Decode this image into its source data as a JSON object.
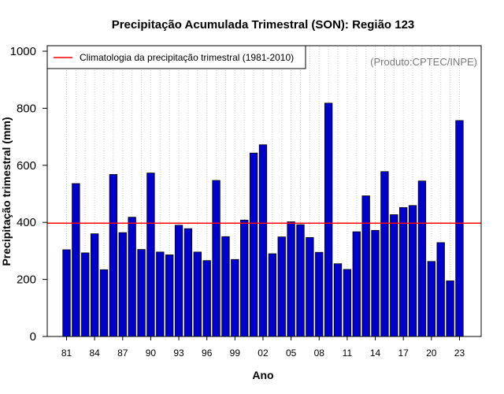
{
  "chart_data": {
    "type": "bar",
    "title": "Precipitação Acumulada Trimestral (SON): Região 123",
    "xlabel": "Ano",
    "ylabel": "Precipitação trimestral (mm)",
    "ylim": [
      0,
      1000
    ],
    "yticks": [
      0,
      200,
      400,
      600,
      800,
      1000
    ],
    "years": [
      1981,
      1982,
      1983,
      1984,
      1985,
      1986,
      1987,
      1988,
      1989,
      1990,
      1991,
      1992,
      1993,
      1994,
      1995,
      1996,
      1997,
      1998,
      1999,
      2000,
      2001,
      2002,
      2003,
      2004,
      2005,
      2006,
      2007,
      2008,
      2009,
      2010,
      2011,
      2012,
      2013,
      2014,
      2015,
      2016,
      2017,
      2018,
      2019,
      2020,
      2021,
      2022,
      2023
    ],
    "categories": [
      "81",
      "82",
      "83",
      "84",
      "85",
      "86",
      "87",
      "88",
      "89",
      "90",
      "91",
      "92",
      "93",
      "94",
      "95",
      "96",
      "97",
      "98",
      "99",
      "00",
      "01",
      "02",
      "03",
      "04",
      "05",
      "06",
      "07",
      "08",
      "09",
      "10",
      "11",
      "12",
      "13",
      "14",
      "15",
      "16",
      "17",
      "18",
      "19",
      "20",
      "21",
      "22",
      "23"
    ],
    "tick_labels": [
      "81",
      "84",
      "87",
      "90",
      "93",
      "96",
      "99",
      "02",
      "05",
      "08",
      "11",
      "14",
      "17",
      "20",
      "23"
    ],
    "tick_label_indices": [
      0,
      3,
      6,
      9,
      12,
      15,
      18,
      21,
      24,
      27,
      30,
      33,
      36,
      39,
      42
    ],
    "values": [
      304,
      536,
      293,
      360,
      234,
      568,
      364,
      418,
      305,
      573,
      296,
      286,
      390,
      378,
      296,
      266,
      547,
      350,
      270,
      408,
      643,
      672,
      290,
      349,
      402,
      392,
      347,
      295,
      818,
      255,
      235,
      367,
      493,
      372,
      578,
      427,
      452,
      459,
      545,
      263,
      329,
      195,
      757
    ],
    "climatology": 397,
    "legend": {
      "label": "Climatologia da precipitação trimestral (1981-2010)",
      "position": "top-left"
    },
    "annotation": "(Produto:CPTEC/INPE)",
    "grid": "vertical-dotted",
    "colors": {
      "bar": "#0000cd",
      "bar_edge": "#000000",
      "climatology": "#ff0000",
      "grid": "#cccccc",
      "annotation": "#7a7a7a"
    }
  }
}
